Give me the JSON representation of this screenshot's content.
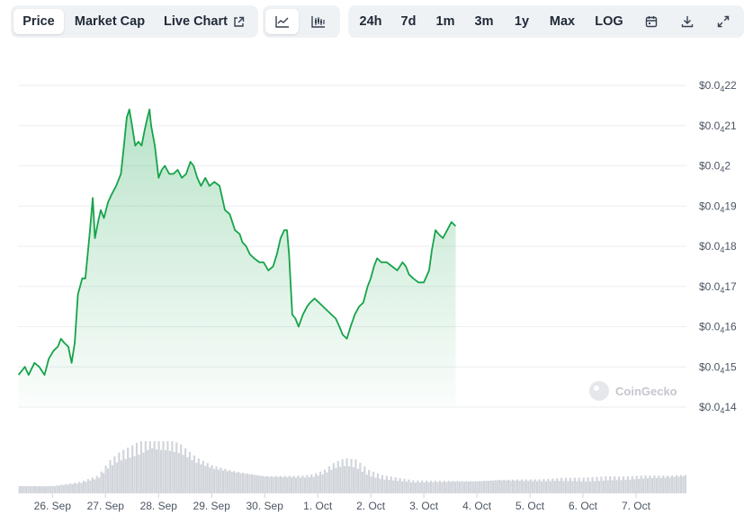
{
  "toolbar": {
    "metric_tabs": [
      {
        "label": "Price",
        "active": true
      },
      {
        "label": "Market Cap",
        "active": false
      },
      {
        "label": "Live Chart",
        "active": false,
        "icon": "external-link-icon"
      }
    ],
    "view_icons": [
      {
        "icon": "line-chart-icon",
        "active": true
      },
      {
        "icon": "candlestick-icon",
        "active": false
      }
    ],
    "range_tabs": [
      {
        "label": "24h"
      },
      {
        "label": "7d"
      },
      {
        "label": "1m"
      },
      {
        "label": "3m"
      },
      {
        "label": "1y"
      },
      {
        "label": "Max"
      },
      {
        "label": "LOG"
      }
    ],
    "tool_icons": [
      "calendar-icon",
      "download-icon",
      "fullscreen-icon"
    ]
  },
  "watermark": "CoinGecko",
  "chart_data": {
    "type": "area",
    "title": "",
    "xlabel": "",
    "ylabel": "",
    "line_color": "#16a34a",
    "fill_color": "#16a34a",
    "volume_color": "#d1d5db",
    "y_ticks": [
      {
        "value": 2.14e-05,
        "prefix": "$0.0",
        "sub": "4",
        "suffix": "14"
      },
      {
        "value": 2.15e-05,
        "prefix": "$0.0",
        "sub": "4",
        "suffix": "15"
      },
      {
        "value": 2.16e-05,
        "prefix": "$0.0",
        "sub": "4",
        "suffix": "16"
      },
      {
        "value": 2.17e-05,
        "prefix": "$0.0",
        "sub": "4",
        "suffix": "17"
      },
      {
        "value": 2.18e-05,
        "prefix": "$0.0",
        "sub": "4",
        "suffix": "18"
      },
      {
        "value": 2.19e-05,
        "prefix": "$0.0",
        "sub": "4",
        "suffix": "19"
      },
      {
        "value": 2.2e-05,
        "prefix": "$0.0",
        "sub": "4",
        "suffix": "2"
      },
      {
        "value": 2.21e-05,
        "prefix": "$0.0",
        "sub": "4",
        "suffix": "21"
      },
      {
        "value": 2.22e-05,
        "prefix": "$0.0",
        "sub": "4",
        "suffix": "22"
      }
    ],
    "ylim": [
      2.14e-05,
      2.22e-05
    ],
    "x_ticks": [
      {
        "label": "26. Sep",
        "day": 1
      },
      {
        "label": "27. Sep",
        "day": 2
      },
      {
        "label": "28. Sep",
        "day": 3
      },
      {
        "label": "29. Sep",
        "day": 4
      },
      {
        "label": "30. Sep",
        "day": 5
      },
      {
        "label": "1. Oct",
        "day": 6
      },
      {
        "label": "2. Oct",
        "day": 7
      },
      {
        "label": "3. Oct",
        "day": 8
      },
      {
        "label": "4. Oct",
        "day": 9
      },
      {
        "label": "5. Oct",
        "day": 10
      },
      {
        "label": "6. Oct",
        "day": 11
      },
      {
        "label": "7. Oct",
        "day": 12
      }
    ],
    "xlim": [
      0.35,
      12.95
    ],
    "price": [
      [
        0.36,
        2.148e-05
      ],
      [
        0.48,
        2.15e-05
      ],
      [
        0.55,
        2.148e-05
      ],
      [
        0.66,
        2.151e-05
      ],
      [
        0.75,
        2.15e-05
      ],
      [
        0.85,
        2.148e-05
      ],
      [
        0.93,
        2.152e-05
      ],
      [
        1.02,
        2.154e-05
      ],
      [
        1.1,
        2.155e-05
      ],
      [
        1.16,
        2.157e-05
      ],
      [
        1.22,
        2.156e-05
      ],
      [
        1.3,
        2.155e-05
      ],
      [
        1.36,
        2.151e-05
      ],
      [
        1.42,
        2.156e-05
      ],
      [
        1.48,
        2.168e-05
      ],
      [
        1.56,
        2.172e-05
      ],
      [
        1.62,
        2.172e-05
      ],
      [
        1.7,
        2.183e-05
      ],
      [
        1.76,
        2.192e-05
      ],
      [
        1.8,
        2.182e-05
      ],
      [
        1.86,
        2.186e-05
      ],
      [
        1.91,
        2.189e-05
      ],
      [
        1.97,
        2.187e-05
      ],
      [
        2.05,
        2.191e-05
      ],
      [
        2.12,
        2.193e-05
      ],
      [
        2.2,
        2.195e-05
      ],
      [
        2.29,
        2.198e-05
      ],
      [
        2.34,
        2.204e-05
      ],
      [
        2.4,
        2.212e-05
      ],
      [
        2.45,
        2.214e-05
      ],
      [
        2.5,
        2.21e-05
      ],
      [
        2.56,
        2.205e-05
      ],
      [
        2.62,
        2.206e-05
      ],
      [
        2.68,
        2.205e-05
      ],
      [
        2.74,
        2.209e-05
      ],
      [
        2.79,
        2.212e-05
      ],
      [
        2.83,
        2.214e-05
      ],
      [
        2.86,
        2.21e-05
      ],
      [
        2.93,
        2.205e-05
      ],
      [
        3.0,
        2.197e-05
      ],
      [
        3.06,
        2.199e-05
      ],
      [
        3.12,
        2.2e-05
      ],
      [
        3.2,
        2.198e-05
      ],
      [
        3.28,
        2.198e-05
      ],
      [
        3.36,
        2.199e-05
      ],
      [
        3.44,
        2.197e-05
      ],
      [
        3.52,
        2.198e-05
      ],
      [
        3.6,
        2.201e-05
      ],
      [
        3.66,
        2.2e-05
      ],
      [
        3.73,
        2.197e-05
      ],
      [
        3.8,
        2.195e-05
      ],
      [
        3.88,
        2.197e-05
      ],
      [
        3.96,
        2.195e-05
      ],
      [
        4.05,
        2.196e-05
      ],
      [
        4.15,
        2.195e-05
      ],
      [
        4.25,
        2.189e-05
      ],
      [
        4.34,
        2.188e-05
      ],
      [
        4.44,
        2.184e-05
      ],
      [
        4.53,
        2.183e-05
      ],
      [
        4.58,
        2.181e-05
      ],
      [
        4.65,
        2.18e-05
      ],
      [
        4.72,
        2.178e-05
      ],
      [
        4.8,
        2.177e-05
      ],
      [
        4.9,
        2.176e-05
      ],
      [
        4.98,
        2.176e-05
      ],
      [
        5.07,
        2.174e-05
      ],
      [
        5.16,
        2.175e-05
      ],
      [
        5.23,
        2.178e-05
      ],
      [
        5.3,
        2.182e-05
      ],
      [
        5.37,
        2.184e-05
      ],
      [
        5.42,
        2.184e-05
      ],
      [
        5.46,
        2.178e-05
      ],
      [
        5.52,
        2.163e-05
      ],
      [
        5.58,
        2.162e-05
      ],
      [
        5.64,
        2.16e-05
      ],
      [
        5.72,
        2.163e-05
      ],
      [
        5.8,
        2.165e-05
      ],
      [
        5.86,
        2.166e-05
      ],
      [
        5.94,
        2.167e-05
      ],
      [
        6.02,
        2.166e-05
      ],
      [
        6.1,
        2.165e-05
      ],
      [
        6.18,
        2.164e-05
      ],
      [
        6.26,
        2.163e-05
      ],
      [
        6.34,
        2.162e-05
      ],
      [
        6.41,
        2.16e-05
      ],
      [
        6.47,
        2.158e-05
      ],
      [
        6.55,
        2.157e-05
      ],
      [
        6.62,
        2.16e-05
      ],
      [
        6.7,
        2.163e-05
      ],
      [
        6.78,
        2.165e-05
      ],
      [
        6.86,
        2.166e-05
      ],
      [
        6.94,
        2.17e-05
      ],
      [
        7.0,
        2.172e-05
      ],
      [
        7.06,
        2.175e-05
      ],
      [
        7.12,
        2.177e-05
      ],
      [
        7.2,
        2.176e-05
      ],
      [
        7.3,
        2.176e-05
      ],
      [
        7.4,
        2.175e-05
      ],
      [
        7.5,
        2.174e-05
      ],
      [
        7.6,
        2.176e-05
      ],
      [
        7.66,
        2.175e-05
      ],
      [
        7.72,
        2.173e-05
      ],
      [
        7.8,
        2.172e-05
      ],
      [
        7.9,
        2.171e-05
      ],
      [
        8.0,
        2.171e-05
      ],
      [
        8.1,
        2.174e-05
      ],
      [
        8.15,
        2.179e-05
      ],
      [
        8.22,
        2.184e-05
      ],
      [
        8.28,
        2.183e-05
      ],
      [
        8.36,
        2.182e-05
      ],
      [
        8.44,
        2.184e-05
      ],
      [
        8.52,
        2.186e-05
      ],
      [
        8.6,
        2.185e-05
      ]
    ],
    "volume": [
      [
        0.36,
        6
      ],
      [
        1.0,
        6
      ],
      [
        1.5,
        9
      ],
      [
        1.85,
        14
      ],
      [
        2.05,
        25
      ],
      [
        2.25,
        32
      ],
      [
        2.45,
        36
      ],
      [
        2.62,
        40
      ],
      [
        2.75,
        44
      ],
      [
        2.85,
        46
      ],
      [
        2.95,
        44
      ],
      [
        3.15,
        42
      ],
      [
        3.4,
        38
      ],
      [
        3.7,
        28
      ],
      [
        4.0,
        22
      ],
      [
        4.4,
        18
      ],
      [
        4.7,
        16
      ],
      [
        5.0,
        14
      ],
      [
        5.4,
        14
      ],
      [
        5.7,
        14
      ],
      [
        5.9,
        15
      ],
      [
        6.1,
        18
      ],
      [
        6.3,
        24
      ],
      [
        6.5,
        27
      ],
      [
        6.7,
        26
      ],
      [
        6.95,
        18
      ],
      [
        7.2,
        14
      ],
      [
        7.5,
        12
      ],
      [
        7.8,
        10
      ],
      [
        8.2,
        10
      ],
      [
        8.6,
        10
      ],
      [
        9.0,
        10
      ],
      [
        9.4,
        11
      ],
      [
        9.8,
        11
      ],
      [
        10.2,
        11
      ],
      [
        10.6,
        12
      ],
      [
        11.0,
        12
      ],
      [
        11.4,
        13
      ],
      [
        11.8,
        13
      ],
      [
        12.2,
        14
      ],
      [
        12.6,
        14
      ],
      [
        12.95,
        15
      ]
    ]
  }
}
